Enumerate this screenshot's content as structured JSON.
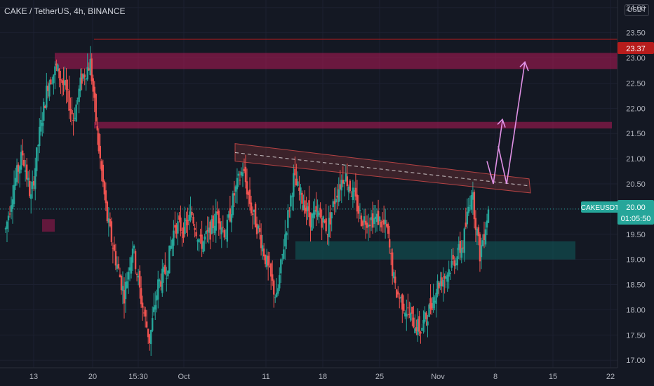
{
  "header": {
    "symbol_title": "CAKE / TetherUS, 4h, BINANCE",
    "currency_badge": "USDT"
  },
  "price_axis": {
    "tick_labels": [
      "24.00",
      "23.50",
      "23.00",
      "22.50",
      "22.00",
      "21.50",
      "21.00",
      "20.50",
      "20.00",
      "19.50",
      "19.00",
      "18.50",
      "18.00",
      "17.50",
      "17.00"
    ]
  },
  "time_axis": {
    "tick_labels": [
      "13",
      "20",
      "15:30",
      "Oct",
      "11",
      "18",
      "25",
      "Nov",
      "8",
      "15",
      "22"
    ]
  },
  "markers": {
    "level_price": "23.37",
    "last_symbol": "CAKEUSDT",
    "last_price": "20.00",
    "countdown": "01:05:50"
  },
  "colors": {
    "background": "#141823",
    "up_candle": "#26a69a",
    "down_candle": "#ef5350",
    "resistance_zone": "#c2185b",
    "support_zone": "#0e5d5d",
    "arrow": "#e091e6",
    "level_line": "#b71c1c",
    "last_price_line": "#26a69a"
  },
  "chart_data": {
    "type": "candlestick",
    "symbol": "CAKE / TetherUS",
    "timeframe": "4h",
    "exchange": "BINANCE",
    "ylim": [
      16.85,
      24.15
    ],
    "ticks": [
      "13",
      "20",
      "15:30",
      "Oct",
      "11",
      "18",
      "25",
      "Nov",
      "8",
      "15",
      "22"
    ],
    "close_path": [
      [
        "13",
        19.6
      ],
      [
        "13",
        20.5
      ],
      [
        "13",
        21.1
      ],
      [
        "13",
        20.2
      ],
      [
        "13",
        21.5
      ],
      [
        "13",
        22.5
      ],
      [
        "13",
        22.8
      ],
      [
        "13",
        22.4
      ],
      [
        "13",
        21.8
      ],
      [
        "13",
        22.6
      ],
      [
        "20",
        22.9
      ],
      [
        "20",
        21.2
      ],
      [
        "20",
        19.8
      ],
      [
        "20",
        19.0
      ],
      [
        "20",
        18.3
      ],
      [
        "15:30",
        19.3
      ],
      [
        "15:30",
        18.2
      ],
      [
        "15:30",
        17.4
      ],
      [
        "15:30",
        18.5
      ],
      [
        "15:30",
        18.8
      ],
      [
        "15:30",
        19.7
      ],
      [
        "15:30",
        19.6
      ],
      [
        "Oct",
        19.9
      ],
      [
        "Oct",
        19.3
      ],
      [
        "Oct",
        19.5
      ],
      [
        "Oct",
        19.9
      ],
      [
        "Oct",
        19.5
      ],
      [
        "Oct",
        20.3
      ],
      [
        "Oct",
        20.8
      ],
      [
        "Oct",
        20.0
      ],
      [
        "Oct",
        19.5
      ],
      [
        "11",
        18.8
      ],
      [
        "11",
        18.2
      ],
      [
        "11",
        19.5
      ],
      [
        "11",
        20.6
      ],
      [
        "11",
        20.2
      ],
      [
        "18",
        19.8
      ],
      [
        "18",
        19.9
      ],
      [
        "18",
        19.6
      ],
      [
        "18",
        20.3
      ],
      [
        "18",
        20.7
      ],
      [
        "18",
        20.3
      ],
      [
        "25",
        19.8
      ],
      [
        "25",
        19.8
      ],
      [
        "25",
        19.8
      ],
      [
        "25",
        19.6
      ],
      [
        "25",
        18.4
      ],
      [
        "25",
        18.1
      ],
      [
        "25",
        17.8
      ],
      [
        "25",
        17.6
      ],
      [
        "Nov",
        18.0
      ],
      [
        "Nov",
        18.5
      ],
      [
        "Nov",
        18.7
      ],
      [
        "Nov",
        19.0
      ],
      [
        "Nov",
        19.3
      ],
      [
        "Nov",
        20.4
      ],
      [
        "Nov",
        19.1
      ],
      [
        "8",
        20.0
      ]
    ],
    "horizontal_levels": [
      {
        "label": "23.37",
        "value": 23.37
      },
      {
        "label": "20.00",
        "value": 20.0
      }
    ],
    "zones": [
      {
        "type": "resistance",
        "from": 22.78,
        "to": 23.1
      },
      {
        "type": "resistance",
        "from": 21.6,
        "to": 21.73
      },
      {
        "type": "support",
        "from": 19.0,
        "to": 19.36
      }
    ],
    "annotations": {
      "descending_channel_upper": [
        [
          20.01,
          21.15
        ],
        [
          20.32,
          20.2
        ]
      ],
      "descending_channel_lower": [
        [
          21.3,
          20.95
        ],
        [
          20.6,
          20.45
        ]
      ],
      "projected_path": [
        20.5,
        20.95,
        20.5,
        21.2,
        20.5,
        22.85
      ]
    }
  }
}
